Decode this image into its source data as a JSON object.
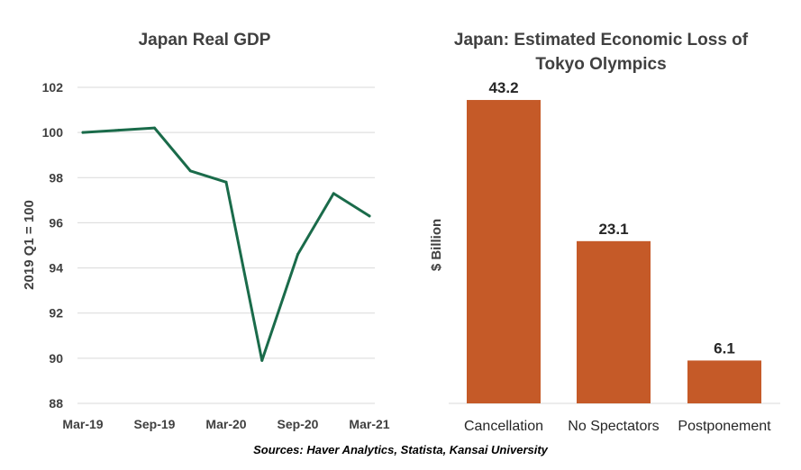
{
  "chart_data": [
    {
      "type": "line",
      "title": "Japan Real GDP",
      "ylabel": "2019 Q1 = 100",
      "xlabel": "",
      "ylim": [
        88,
        102
      ],
      "yticks": [
        88,
        90,
        92,
        94,
        96,
        98,
        100,
        102
      ],
      "x": [
        "2019 Q1",
        "2019 Q2",
        "2019 Q3",
        "2019 Q4",
        "2020 Q1",
        "2020 Q2",
        "2020 Q3",
        "2020 Q4",
        "2021 Q1"
      ],
      "x_tick_labels": [
        "Mar-19",
        "Sep-19",
        "Mar-20",
        "Sep-20",
        "Mar-21"
      ],
      "series": [
        {
          "name": "Japan Real GDP",
          "color": "#1a6b4a",
          "values": [
            100.0,
            100.1,
            100.2,
            98.3,
            97.8,
            89.9,
            94.6,
            97.3,
            96.3
          ]
        }
      ],
      "grid": true
    },
    {
      "type": "bar",
      "title_lines": [
        "Japan: Estimated Economic Loss of",
        "Tokyo Olympics"
      ],
      "ylabel": "$ Billion",
      "categories": [
        "Cancellation",
        "No Spectators",
        "Postponement"
      ],
      "values": [
        43.2,
        23.1,
        6.1
      ],
      "value_labels": [
        "43.2",
        "23.1",
        "6.1"
      ],
      "color": "#c55a28",
      "ylim": [
        0,
        45
      ]
    }
  ],
  "source": "Sources: Haver Analytics, Statista, Kansai University"
}
